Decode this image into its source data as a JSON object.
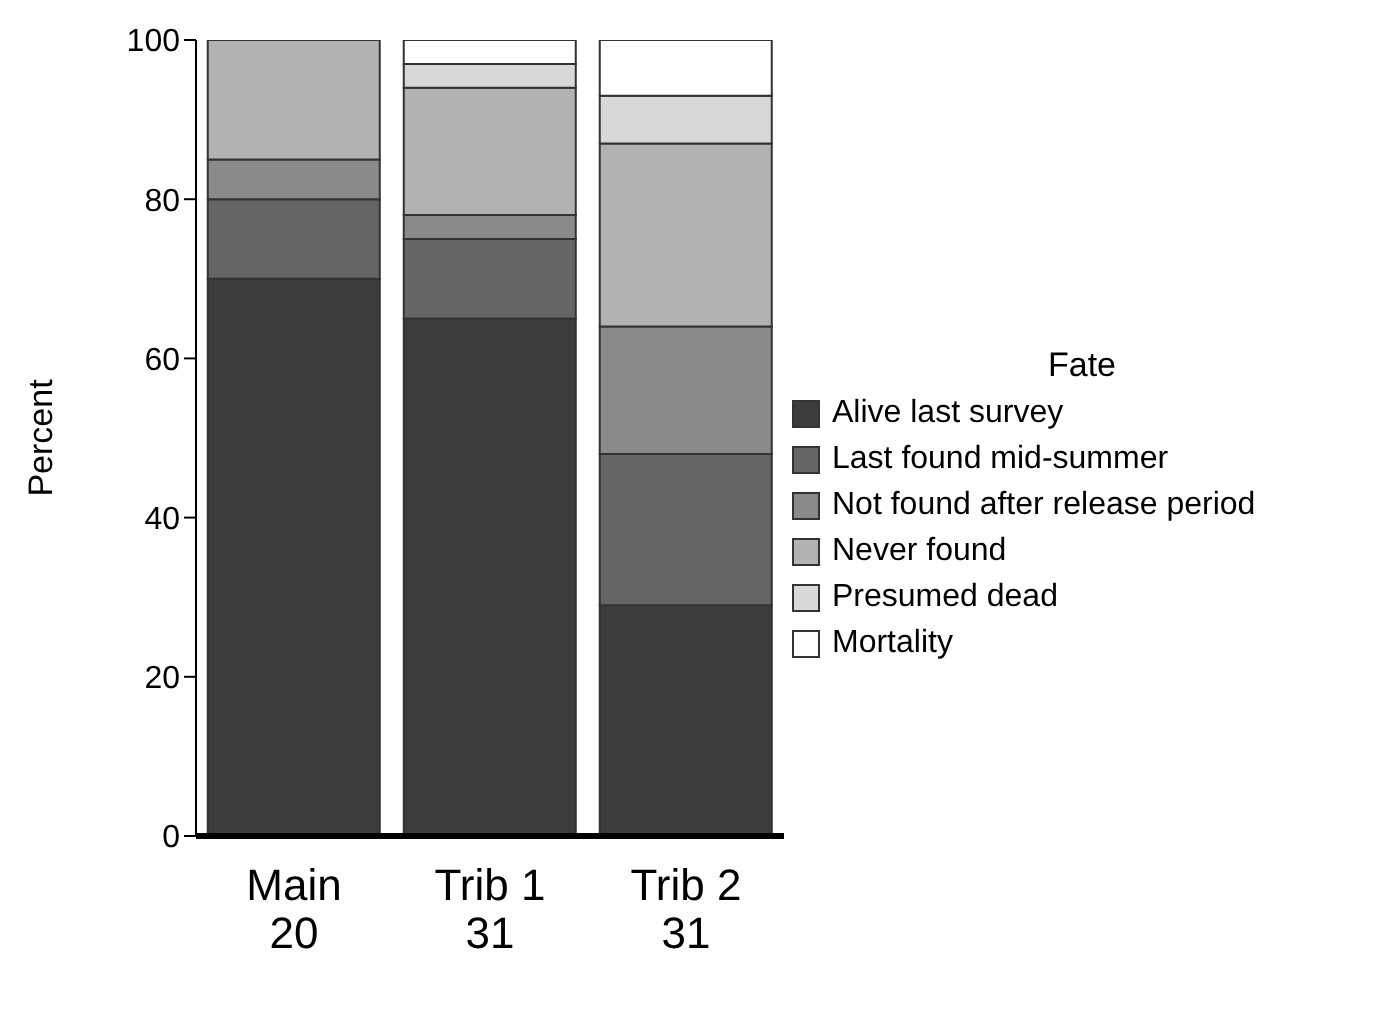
{
  "chart_data": {
    "type": "bar",
    "stacked": true,
    "ylabel": "Percent",
    "legend_title": "Fate",
    "legend": "right",
    "grid": false,
    "categories": [
      "Main\n20",
      "Trib 1\n31",
      "Trib 2\n31"
    ],
    "ylim": [
      0,
      100
    ],
    "yticks": [
      0,
      20,
      40,
      60,
      80,
      100
    ],
    "series": [
      {
        "name": "Alive last survey",
        "color": "#3c3c3c",
        "values": [
          70,
          65,
          29
        ]
      },
      {
        "name": "Last found mid-summer",
        "color": "#656565",
        "values": [
          10,
          10,
          19
        ]
      },
      {
        "name": "Not found after release period",
        "color": "#8a8a8a",
        "values": [
          5,
          3,
          16
        ]
      },
      {
        "name": "Never found",
        "color": "#b2b2b2",
        "values": [
          15,
          16,
          23
        ]
      },
      {
        "name": "Presumed dead",
        "color": "#d8d8d8",
        "values": [
          0,
          3,
          6
        ]
      },
      {
        "name": "Mortality",
        "color": "#ffffff",
        "values": [
          0,
          3,
          7
        ]
      }
    ]
  }
}
